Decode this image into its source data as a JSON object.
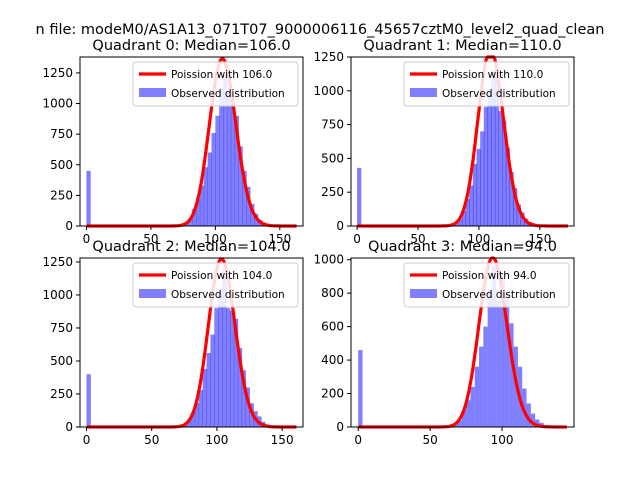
{
  "suptitle": "n file: modeM0/AS1A13_071T07_9000006116_45657cztM0_level2_quad_clean",
  "chart_data": [
    {
      "type": "bar",
      "title": "Quadrant 0: Median=106.0",
      "median": 106.0,
      "xlim": [
        -5,
        168
      ],
      "ylim": [
        0,
        1380
      ],
      "xticks": [
        0,
        50,
        100,
        150
      ],
      "yticks": [
        0,
        250,
        500,
        750,
        1000,
        1250
      ],
      "legend": {
        "placement": "top-right",
        "poisson_label": "Poission with 106.0",
        "observed_label": "Observed distribution"
      },
      "bin_width": 3.3,
      "hist": [
        [
          0,
          450
        ],
        [
          76,
          20
        ],
        [
          79,
          60
        ],
        [
          82,
          140
        ],
        [
          85,
          220
        ],
        [
          88,
          330
        ],
        [
          91,
          480
        ],
        [
          94,
          600
        ],
        [
          97,
          760
        ],
        [
          100,
          900
        ],
        [
          103,
          1130
        ],
        [
          106,
          1240
        ],
        [
          109,
          1100
        ],
        [
          112,
          1000
        ],
        [
          115,
          900
        ],
        [
          118,
          650
        ],
        [
          121,
          450
        ],
        [
          124,
          320
        ],
        [
          127,
          180
        ],
        [
          130,
          100
        ],
        [
          133,
          50
        ],
        [
          136,
          30
        ],
        [
          139,
          15
        ],
        [
          142,
          8
        ]
      ]
    },
    {
      "type": "bar",
      "title": "Quadrant 1: Median=110.0",
      "median": 110.0,
      "xlim": [
        -5,
        178
      ],
      "ylim": [
        0,
        1250
      ],
      "xticks": [
        0,
        50,
        100,
        150
      ],
      "yticks": [
        0,
        250,
        500,
        750,
        1000,
        1250
      ],
      "legend": {
        "placement": "top-right",
        "poisson_label": "Poission with 110.0",
        "observed_label": "Observed distribution"
      },
      "bin_width": 3.5,
      "hist": [
        [
          0,
          430
        ],
        [
          80,
          20
        ],
        [
          83,
          50
        ],
        [
          86,
          110
        ],
        [
          89,
          200
        ],
        [
          92,
          300
        ],
        [
          95,
          460
        ],
        [
          98,
          570
        ],
        [
          101,
          700
        ],
        [
          104,
          880
        ],
        [
          107,
          1000
        ],
        [
          110,
          1150
        ],
        [
          113,
          1100
        ],
        [
          116,
          850
        ],
        [
          119,
          780
        ],
        [
          122,
          580
        ],
        [
          125,
          400
        ],
        [
          128,
          280
        ],
        [
          131,
          160
        ],
        [
          134,
          100
        ],
        [
          137,
          55
        ],
        [
          140,
          30
        ],
        [
          143,
          20
        ],
        [
          150,
          10
        ]
      ]
    },
    {
      "type": "bar",
      "title": "Quadrant 2: Median=104.0",
      "median": 104.0,
      "xlim": [
        -5,
        166
      ],
      "ylim": [
        0,
        1280
      ],
      "xticks": [
        0,
        50,
        100,
        150
      ],
      "yticks": [
        0,
        250,
        500,
        750,
        1000,
        1250
      ],
      "legend": {
        "placement": "top-right",
        "poisson_label": "Poission with 104.0",
        "observed_label": "Observed distribution"
      },
      "bin_width": 3.3,
      "hist": [
        [
          0,
          400
        ],
        [
          74,
          15
        ],
        [
          77,
          50
        ],
        [
          80,
          110
        ],
        [
          83,
          180
        ],
        [
          86,
          280
        ],
        [
          89,
          440
        ],
        [
          92,
          560
        ],
        [
          95,
          700
        ],
        [
          98,
          900
        ],
        [
          101,
          1050
        ],
        [
          104,
          1200
        ],
        [
          107,
          900
        ],
        [
          110,
          880
        ],
        [
          113,
          820
        ],
        [
          116,
          600
        ],
        [
          119,
          430
        ],
        [
          122,
          300
        ],
        [
          125,
          180
        ],
        [
          128,
          120
        ],
        [
          131,
          80
        ],
        [
          134,
          40
        ],
        [
          137,
          20
        ],
        [
          140,
          10
        ]
      ]
    },
    {
      "type": "bar",
      "title": "Quadrant 3: Median=94.0",
      "median": 94.0,
      "xlim": [
        -5,
        150
      ],
      "ylim": [
        0,
        1010
      ],
      "xticks": [
        0,
        50,
        100
      ],
      "yticks": [
        0,
        200,
        400,
        600,
        800,
        1000
      ],
      "legend": {
        "placement": "top-right",
        "poisson_label": "Poission with 94.0",
        "observed_label": "Observed distribution"
      },
      "bin_width": 3.0,
      "hist": [
        [
          0,
          460
        ],
        [
          66,
          15
        ],
        [
          69,
          40
        ],
        [
          72,
          100
        ],
        [
          75,
          160
        ],
        [
          78,
          240
        ],
        [
          81,
          360
        ],
        [
          84,
          480
        ],
        [
          87,
          600
        ],
        [
          90,
          820
        ],
        [
          93,
          960
        ],
        [
          96,
          750
        ],
        [
          99,
          900
        ],
        [
          102,
          800
        ],
        [
          105,
          620
        ],
        [
          108,
          480
        ],
        [
          111,
          360
        ],
        [
          114,
          230
        ],
        [
          117,
          140
        ],
        [
          120,
          80
        ],
        [
          123,
          45
        ],
        [
          126,
          25
        ],
        [
          129,
          12
        ]
      ]
    }
  ]
}
